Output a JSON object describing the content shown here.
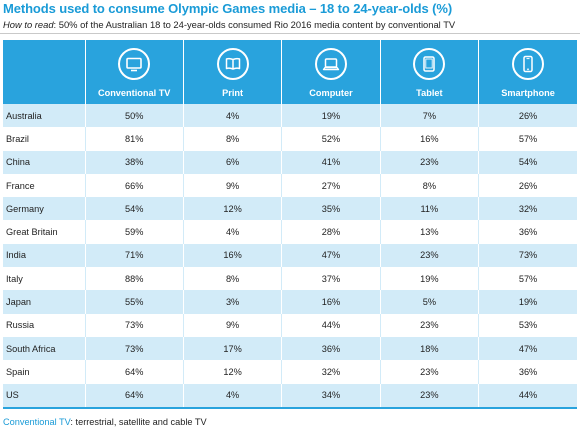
{
  "header": {
    "title": "Methods used to consume Olympic Games media – 18 to 24-year-olds (%)",
    "howto_label": "How to read",
    "howto_text": ": 50% of the Australian 18 to 24-year-olds consumed Rio 2016 media content by conventional TV"
  },
  "columns": [
    {
      "label": "Conventional TV",
      "icon": "tv-icon"
    },
    {
      "label": "Print",
      "icon": "book-icon"
    },
    {
      "label": "Computer",
      "icon": "laptop-icon"
    },
    {
      "label": "Tablet",
      "icon": "tablet-icon"
    },
    {
      "label": "Smartphone",
      "icon": "smartphone-icon"
    }
  ],
  "chart_data": {
    "type": "table",
    "title": "Methods used to consume Olympic Games media – 18 to 24-year-olds (%)",
    "columns": [
      "Conventional TV",
      "Print",
      "Computer",
      "Tablet",
      "Smartphone"
    ],
    "rows": [
      {
        "country": "Australia",
        "values": [
          "50%",
          "4%",
          "19%",
          "7%",
          "26%"
        ]
      },
      {
        "country": "Brazil",
        "values": [
          "81%",
          "8%",
          "52%",
          "16%",
          "57%"
        ]
      },
      {
        "country": "China",
        "values": [
          "38%",
          "6%",
          "41%",
          "23%",
          "54%"
        ]
      },
      {
        "country": "France",
        "values": [
          "66%",
          "9%",
          "27%",
          "8%",
          "26%"
        ]
      },
      {
        "country": "Germany",
        "values": [
          "54%",
          "12%",
          "35%",
          "11%",
          "32%"
        ]
      },
      {
        "country": "Great Britain",
        "values": [
          "59%",
          "4%",
          "28%",
          "13%",
          "36%"
        ]
      },
      {
        "country": "India",
        "values": [
          "71%",
          "16%",
          "47%",
          "23%",
          "73%"
        ]
      },
      {
        "country": "Italy",
        "values": [
          "88%",
          "8%",
          "37%",
          "19%",
          "57%"
        ]
      },
      {
        "country": "Japan",
        "values": [
          "55%",
          "3%",
          "16%",
          "5%",
          "19%"
        ]
      },
      {
        "country": "Russia",
        "values": [
          "73%",
          "9%",
          "44%",
          "23%",
          "53%"
        ]
      },
      {
        "country": "South Africa",
        "values": [
          "73%",
          "17%",
          "36%",
          "18%",
          "47%"
        ]
      },
      {
        "country": "Spain",
        "values": [
          "64%",
          "12%",
          "32%",
          "23%",
          "36%"
        ]
      },
      {
        "country": "US",
        "values": [
          "64%",
          "4%",
          "34%",
          "23%",
          "44%"
        ]
      }
    ]
  },
  "footnote": {
    "term": "Conventional TV",
    "text": ": terrestrial, satellite and cable TV"
  },
  "colors": {
    "accent": "#29a3dd",
    "title": "#1a9bd7",
    "band": "#d2ebf8"
  }
}
